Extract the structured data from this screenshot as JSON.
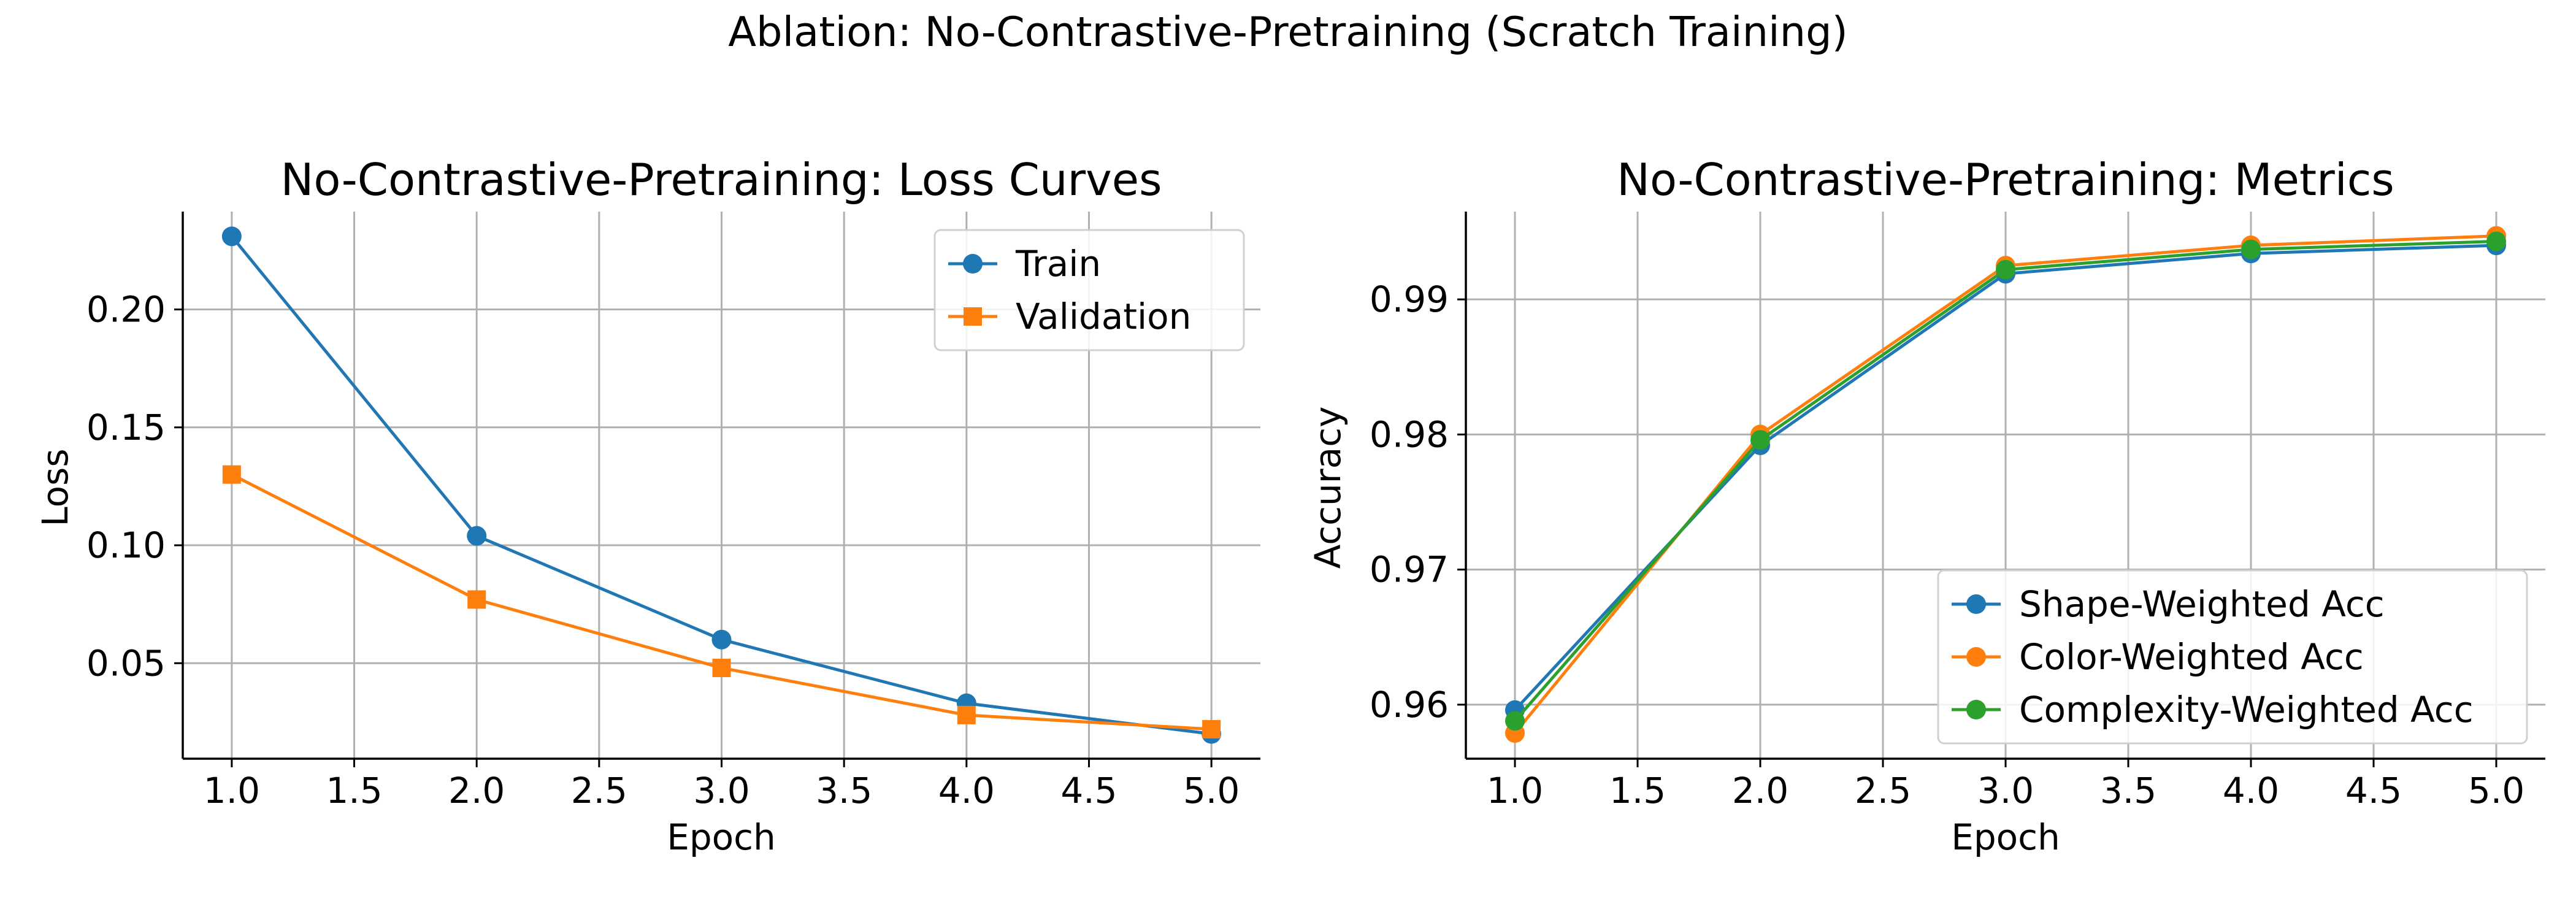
{
  "figure": {
    "title": "Ablation: No-Contrastive-Pretraining (Scratch Training)"
  },
  "chart_data": [
    {
      "type": "line",
      "title": "No-Contrastive-Pretraining: Loss Curves",
      "xlabel": "Epoch",
      "ylabel": "Loss",
      "x": [
        1,
        2,
        3,
        4,
        5
      ],
      "xlim": [
        0.8,
        5.2
      ],
      "ylim": [
        0.0095,
        0.2415
      ],
      "xticks": [
        1.0,
        1.5,
        2.0,
        2.5,
        3.0,
        3.5,
        4.0,
        4.5,
        5.0
      ],
      "xtick_labels": [
        "1.0",
        "1.5",
        "2.0",
        "2.5",
        "3.0",
        "3.5",
        "4.0",
        "4.5",
        "5.0"
      ],
      "yticks": [
        0.05,
        0.1,
        0.15,
        0.2
      ],
      "ytick_labels": [
        "0.05",
        "0.10",
        "0.15",
        "0.20"
      ],
      "grid": true,
      "legend": "top-right",
      "series": [
        {
          "name": "Train",
          "color": "#1f77b4",
          "marker": "circle",
          "values": [
            0.231,
            0.104,
            0.06,
            0.033,
            0.02
          ]
        },
        {
          "name": "Validation",
          "color": "#ff7f0e",
          "marker": "square",
          "values": [
            0.13,
            0.077,
            0.048,
            0.028,
            0.022
          ]
        }
      ]
    },
    {
      "type": "line",
      "title": "No-Contrastive-Pretraining: Metrics",
      "xlabel": "Epoch",
      "ylabel": "Accuracy",
      "x": [
        1,
        2,
        3,
        4,
        5
      ],
      "xlim": [
        0.8,
        5.2
      ],
      "ylim": [
        0.956,
        0.9965
      ],
      "xticks": [
        1.0,
        1.5,
        2.0,
        2.5,
        3.0,
        3.5,
        4.0,
        4.5,
        5.0
      ],
      "xtick_labels": [
        "1.0",
        "1.5",
        "2.0",
        "2.5",
        "3.0",
        "3.5",
        "4.0",
        "4.5",
        "5.0"
      ],
      "yticks": [
        0.96,
        0.97,
        0.98,
        0.99
      ],
      "ytick_labels": [
        "0.96",
        "0.97",
        "0.98",
        "0.99"
      ],
      "grid": true,
      "legend": "bottom-right",
      "series": [
        {
          "name": "Shape-Weighted Acc",
          "color": "#1f77b4",
          "marker": "circle",
          "values": [
            0.9596,
            0.9792,
            0.9919,
            0.9934,
            0.994
          ]
        },
        {
          "name": "Color-Weighted Acc",
          "color": "#ff7f0e",
          "marker": "circle",
          "values": [
            0.9579,
            0.98,
            0.9925,
            0.994,
            0.9947
          ]
        },
        {
          "name": "Complexity-Weighted Acc",
          "color": "#2ca02c",
          "marker": "circle",
          "values": [
            0.9588,
            0.9796,
            0.9922,
            0.9937,
            0.9943
          ]
        }
      ]
    }
  ]
}
